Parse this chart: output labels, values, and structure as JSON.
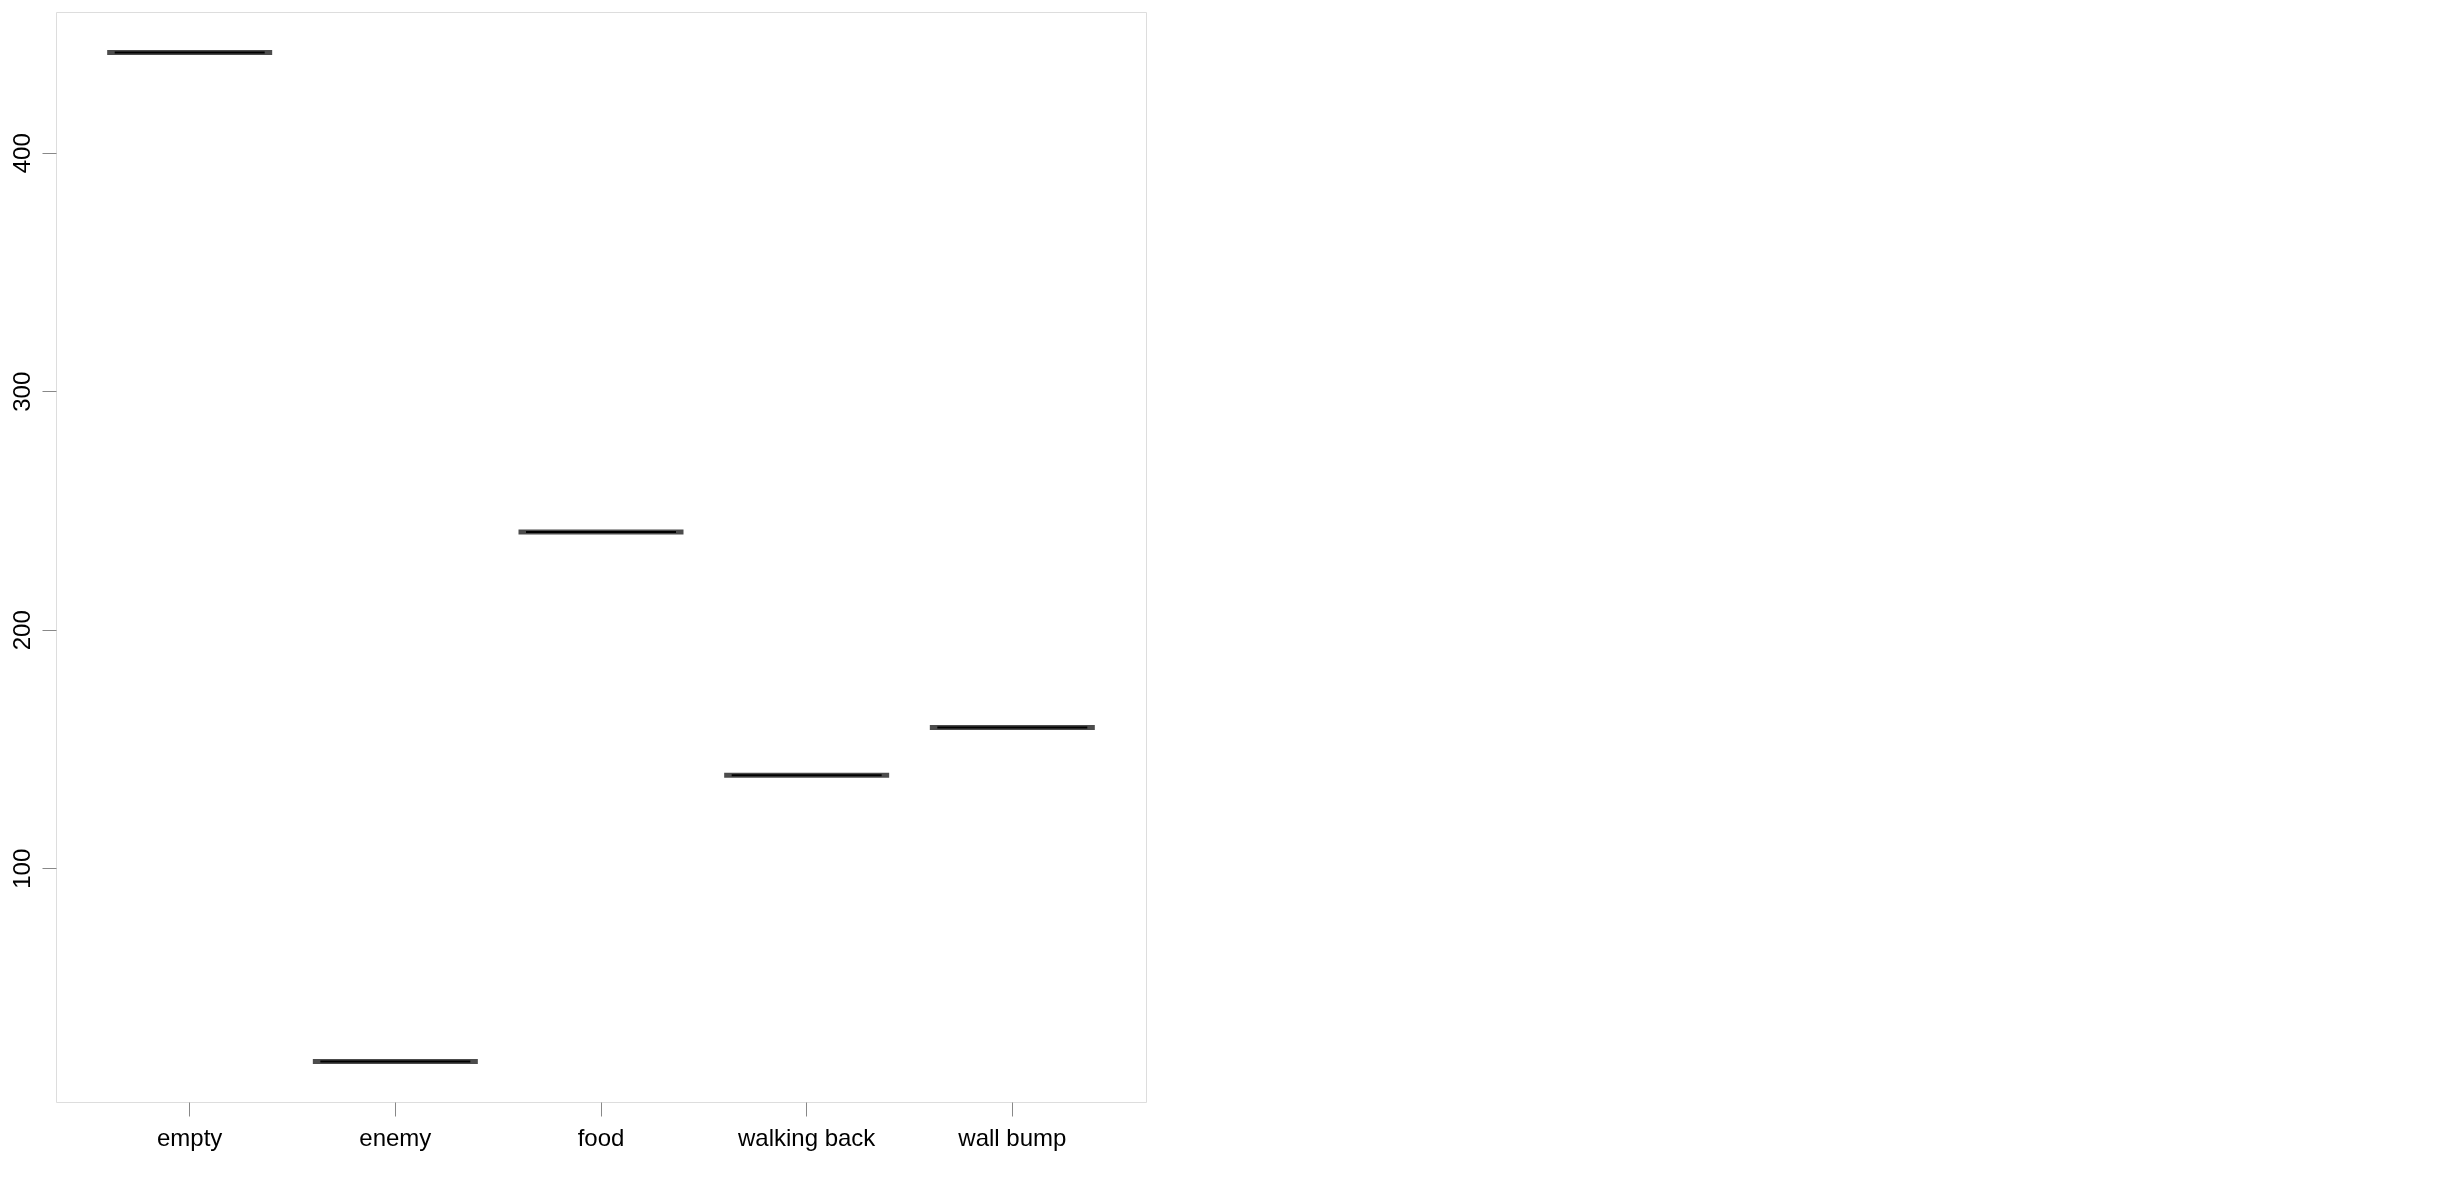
{
  "chart_data": {
    "type": "box",
    "categories": [
      "empty",
      "enemy",
      "food",
      "walking back",
      "wall bump"
    ],
    "boxes": [
      {
        "low": 442,
        "q1": 442,
        "median": 442,
        "q3": 442,
        "high": 442
      },
      {
        "low": 19,
        "q1": 19,
        "median": 19,
        "q3": 19,
        "high": 19
      },
      {
        "low": 241,
        "q1": 241,
        "median": 241,
        "q3": 241,
        "high": 241
      },
      {
        "low": 139,
        "q1": 139,
        "median": 139,
        "q3": 139,
        "high": 139
      },
      {
        "low": 159,
        "q1": 159,
        "median": 159,
        "q3": 159,
        "high": 159
      }
    ],
    "ylim": [
      2,
      459
    ],
    "yticks": [
      100,
      200,
      300,
      400
    ],
    "grid": false
  }
}
